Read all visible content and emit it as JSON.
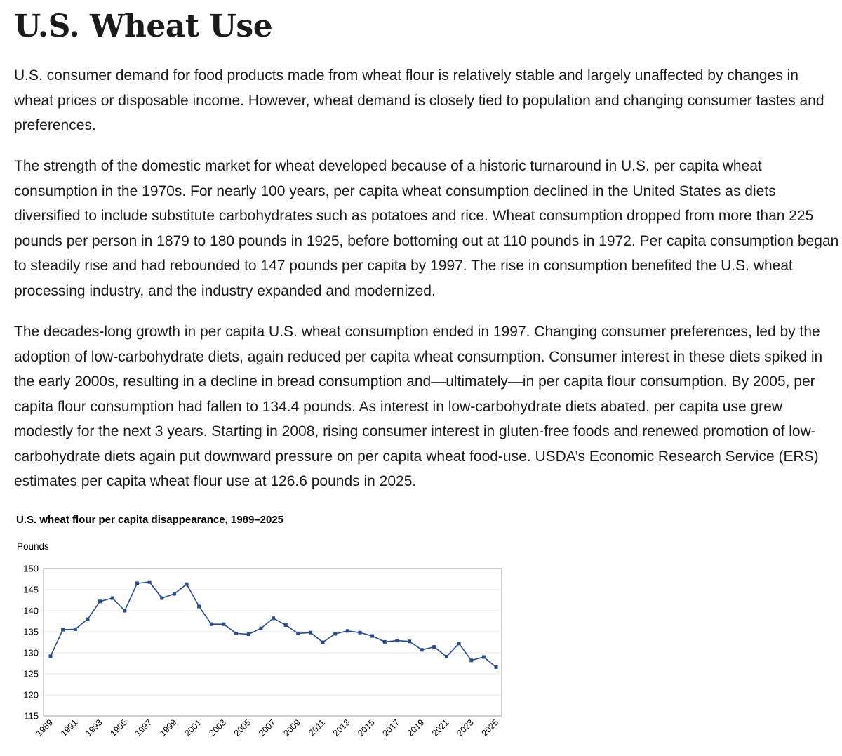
{
  "article": {
    "title": "U.S. Wheat Use",
    "paragraphs": [
      "U.S. consumer demand for food products made from wheat flour is relatively stable and largely unaffected by changes in wheat prices or disposable income. However, wheat demand is closely tied to population and changing consumer tastes and preferences.",
      "The strength of the domestic market for wheat developed because of a historic turnaround in U.S. per capita wheat consumption in the 1970s. For nearly 100 years, per capita wheat consumption declined in the United States as diets diversified to include substitute carbohydrates such as potatoes and rice. Wheat consumption dropped from more than 225 pounds per person in 1879 to 180 pounds in 1925, before bottoming out at 110 pounds in 1972. Per capita consumption began to steadily rise and had rebounded to 147 pounds per capita by 1997. The rise in consumption benefited the U.S. wheat processing industry, and the industry expanded and modernized.",
      "The decades-long growth in per capita U.S. wheat consumption ended in 1997. Changing consumer preferences, led by the adoption of low-carbohydrate diets, again reduced per capita wheat consumption. Consumer interest in these diets spiked in the early 2000s, resulting in a decline in bread consumption and—ultimately—in per capita flour consumption. By 2005, per capita flour consumption had fallen to 134.4 pounds. As interest in low-carbohydrate diets abated, per capita use grew modestly for the next 3 years. Starting in 2008, rising consumer interest in gluten-free foods and renewed promotion of low-carbohydrate diets again put downward pressure on per capita wheat food-use. USDA’s Economic Research Service (ERS) estimates per capita wheat flour use at 126.6 pounds in 2025."
    ]
  },
  "chart_data": {
    "type": "line",
    "title": "U.S. wheat flour per capita disappearance, 1989–2025",
    "ylabel": "Pounds",
    "xlabel": "",
    "ylim": [
      115,
      150
    ],
    "y_ticks": [
      150,
      145,
      140,
      135,
      130,
      125,
      120,
      115
    ],
    "x_tick_labels": [
      "1989",
      "1991",
      "1993",
      "1995",
      "1997",
      "1999",
      "2001",
      "2003",
      "2005",
      "2007",
      "2009",
      "2011",
      "2013",
      "2015",
      "2017",
      "2019",
      "2021",
      "2023",
      "2025"
    ],
    "grid": true,
    "legend": "none",
    "series_color": "#2a4a8a",
    "x": [
      1989,
      1990,
      1991,
      1992,
      1993,
      1994,
      1995,
      1996,
      1997,
      1998,
      1999,
      2000,
      2001,
      2002,
      2003,
      2004,
      2005,
      2006,
      2007,
      2008,
      2009,
      2010,
      2011,
      2012,
      2013,
      2014,
      2015,
      2016,
      2017,
      2018,
      2019,
      2020,
      2021,
      2022,
      2023,
      2024,
      2025
    ],
    "y": [
      129.2,
      135.5,
      135.6,
      138.0,
      142.2,
      143.0,
      140.0,
      146.5,
      146.8,
      143.0,
      144.0,
      146.3,
      141.0,
      136.8,
      136.8,
      134.6,
      134.4,
      135.8,
      138.2,
      136.6,
      134.6,
      134.8,
      132.5,
      134.5,
      135.2,
      134.8,
      134.0,
      132.6,
      132.9,
      132.7,
      130.7,
      131.4,
      129.1,
      132.2,
      128.2,
      129.0,
      126.6
    ]
  }
}
